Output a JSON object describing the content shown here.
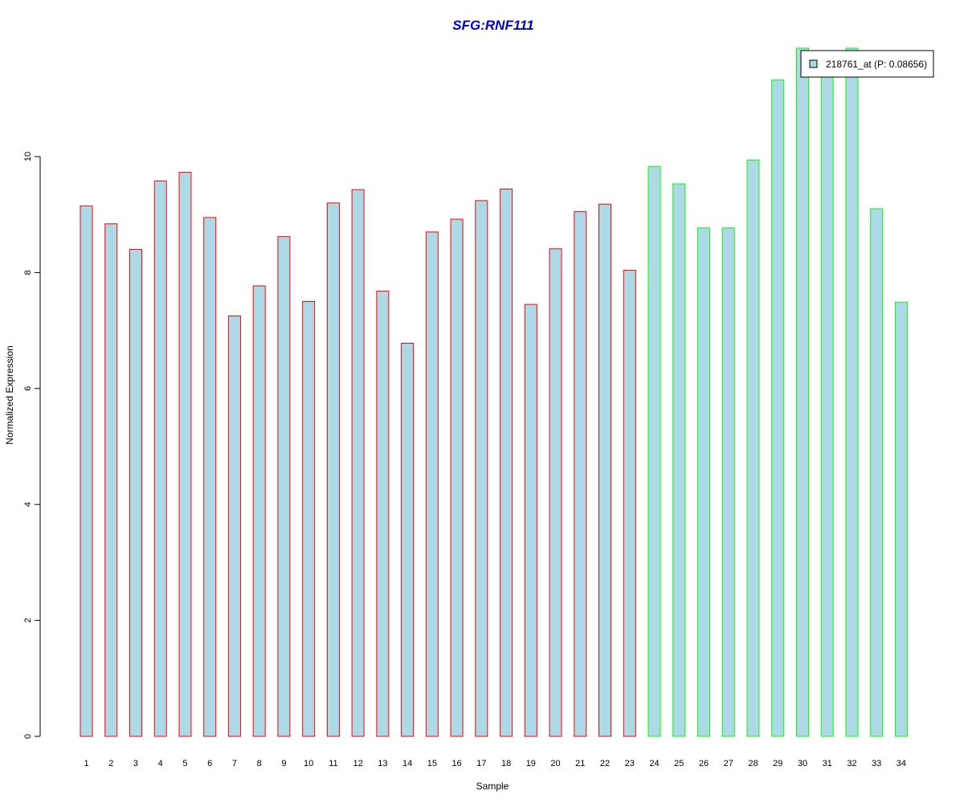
{
  "chart_data": {
    "type": "bar",
    "title": "SFG:RNF111",
    "xlabel": "Sample",
    "ylabel": "Normalized Expression",
    "categories": [
      "1",
      "2",
      "3",
      "4",
      "5",
      "6",
      "7",
      "8",
      "9",
      "10",
      "11",
      "12",
      "13",
      "14",
      "15",
      "16",
      "17",
      "18",
      "19",
      "20",
      "21",
      "22",
      "23",
      "24",
      "25",
      "26",
      "27",
      "28",
      "29",
      "30",
      "31",
      "32",
      "33",
      "34"
    ],
    "series": [
      {
        "name": "218761_at (P: 0.08656)",
        "values": [
          9.15,
          8.84,
          8.4,
          9.58,
          9.73,
          8.95,
          7.25,
          7.77,
          8.62,
          7.5,
          9.2,
          9.43,
          7.68,
          6.78,
          8.7,
          8.92,
          9.24,
          9.44,
          7.45,
          8.41,
          9.05,
          9.18,
          8.04,
          9.83,
          9.53,
          8.77,
          8.77,
          9.94,
          11.32,
          11.87,
          11.55,
          11.87,
          9.1,
          7.49
        ]
      }
    ],
    "group_of_sample": [
      1,
      1,
      1,
      1,
      1,
      1,
      1,
      1,
      1,
      1,
      1,
      1,
      1,
      1,
      1,
      1,
      1,
      1,
      1,
      1,
      1,
      1,
      1,
      2,
      2,
      2,
      2,
      2,
      2,
      2,
      2,
      2,
      2,
      2
    ],
    "yticks": [
      0,
      2,
      4,
      6,
      8,
      10
    ],
    "ylim": [
      0,
      11.87
    ],
    "grid": false,
    "legend_position": "top-right",
    "colors": {
      "bar_fill": "#add8e6",
      "group1_border": "#ff0000",
      "group2_border": "#00ff00",
      "title": "#0000cd",
      "axis": "#000000"
    }
  }
}
